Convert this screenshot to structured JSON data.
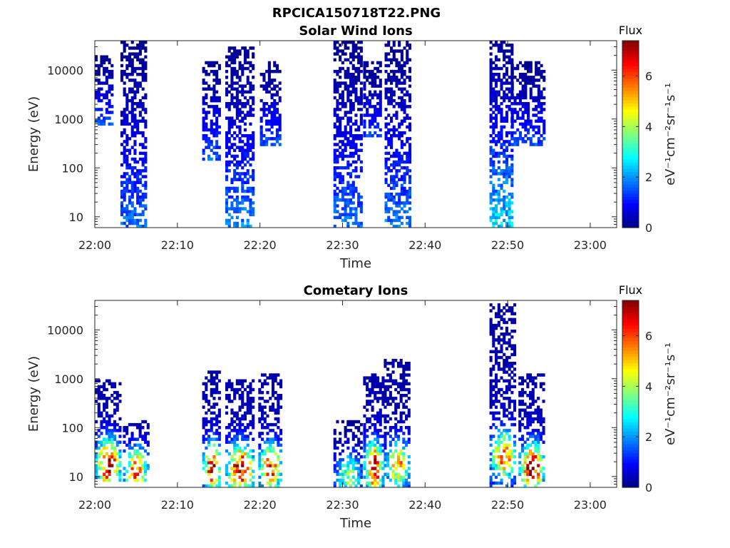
{
  "figure": {
    "title": "RPCICA150718T22.PNG"
  },
  "chart_data": [
    {
      "type": "heatmap",
      "title": "Solar Wind Ions",
      "xlabel": "Time",
      "ylabel": "Energy (eV)",
      "x_ticks": [
        "22:00",
        "22:10",
        "22:20",
        "22:30",
        "22:40",
        "22:50",
        "23:00"
      ],
      "x_tick_minutes": [
        0,
        10,
        20,
        30,
        40,
        50,
        60
      ],
      "xlim_minutes": [
        0,
        63.2
      ],
      "y_scale": "log",
      "y_ticks": [
        "10",
        "100",
        "1000",
        "10000"
      ],
      "y_tick_values": [
        10,
        100,
        1000,
        10000
      ],
      "ylim": [
        6,
        40000
      ],
      "colorbar": {
        "title": "Flux",
        "label": "eV⁻¹cm⁻²sr⁻¹s⁻¹",
        "ticks": [
          "0",
          "2",
          "4",
          "6"
        ],
        "tick_values": [
          0,
          2,
          4,
          6
        ],
        "range": [
          0,
          7.4
        ],
        "colormap": "jet"
      },
      "bursts": [
        {
          "start_min": 0.0,
          "end_min": 2.2,
          "e_min": 700,
          "e_max": 20000,
          "flux_peak": 2.6
        },
        {
          "start_min": 3.1,
          "end_min": 6.3,
          "e_min": 6,
          "e_max": 40000,
          "flux_peak": 2.9
        },
        {
          "start_min": 13.0,
          "end_min": 15.2,
          "e_min": 150,
          "e_max": 15000,
          "flux_peak": 2.6
        },
        {
          "start_min": 15.8,
          "end_min": 19.2,
          "e_min": 6,
          "e_max": 30000,
          "flux_peak": 3.2
        },
        {
          "start_min": 20.0,
          "end_min": 22.5,
          "e_min": 300,
          "e_max": 15000,
          "flux_peak": 2.4
        },
        {
          "start_min": 28.9,
          "end_min": 32.3,
          "e_min": 6,
          "e_max": 40000,
          "flux_peak": 3.0
        },
        {
          "start_min": 32.5,
          "end_min": 34.5,
          "e_min": 400,
          "e_max": 15000,
          "flux_peak": 2.4
        },
        {
          "start_min": 35.1,
          "end_min": 38.1,
          "e_min": 6,
          "e_max": 40000,
          "flux_peak": 3.1
        },
        {
          "start_min": 47.8,
          "end_min": 50.4,
          "e_min": 6,
          "e_max": 40000,
          "flux_peak": 4.3
        },
        {
          "start_min": 50.4,
          "end_min": 54.3,
          "e_min": 300,
          "e_max": 15000,
          "flux_peak": 2.4
        }
      ]
    },
    {
      "type": "heatmap",
      "title": "Cometary Ions",
      "xlabel": "Time",
      "ylabel": "Energy (eV)",
      "x_ticks": [
        "22:00",
        "22:10",
        "22:20",
        "22:30",
        "22:40",
        "22:50",
        "23:00"
      ],
      "x_tick_minutes": [
        0,
        10,
        20,
        30,
        40,
        50,
        60
      ],
      "xlim_minutes": [
        0,
        63.2
      ],
      "y_scale": "log",
      "y_ticks": [
        "10",
        "100",
        "1000",
        "10000"
      ],
      "y_tick_values": [
        10,
        100,
        1000,
        10000
      ],
      "ylim": [
        6,
        40000
      ],
      "colorbar": {
        "title": "Flux",
        "label": "eV⁻¹cm⁻²sr⁻¹s⁻¹",
        "ticks": [
          "0",
          "2",
          "4",
          "6"
        ],
        "tick_values": [
          0,
          2,
          4,
          6
        ],
        "range": [
          0,
          7.4
        ],
        "colormap": "jet"
      },
      "bursts": [
        {
          "start_min": 0.0,
          "end_min": 3.0,
          "e_min": 8,
          "e_max": 1000,
          "flux_peak": 6.8
        },
        {
          "start_min": 3.4,
          "end_min": 6.3,
          "e_min": 8,
          "e_max": 150,
          "flux_peak": 5.5
        },
        {
          "start_min": 13.0,
          "end_min": 15.2,
          "e_min": 6,
          "e_max": 1400,
          "flux_peak": 6.6
        },
        {
          "start_min": 15.8,
          "end_min": 19.2,
          "e_min": 6,
          "e_max": 1000,
          "flux_peak": 6.8
        },
        {
          "start_min": 19.8,
          "end_min": 22.5,
          "e_min": 6,
          "e_max": 1200,
          "flux_peak": 6.2
        },
        {
          "start_min": 28.9,
          "end_min": 32.3,
          "e_min": 6,
          "e_max": 150,
          "flux_peak": 3.5
        },
        {
          "start_min": 32.5,
          "end_min": 34.8,
          "e_min": 6,
          "e_max": 1300,
          "flux_peak": 6.8
        },
        {
          "start_min": 35.0,
          "end_min": 38.1,
          "e_min": 6,
          "e_max": 2600,
          "flux_peak": 5.0
        },
        {
          "start_min": 47.8,
          "end_min": 51.0,
          "e_min": 6,
          "e_max": 33000,
          "flux_peak": 5.6
        },
        {
          "start_min": 51.3,
          "end_min": 54.3,
          "e_min": 6,
          "e_max": 1200,
          "flux_peak": 6.9
        }
      ]
    }
  ]
}
